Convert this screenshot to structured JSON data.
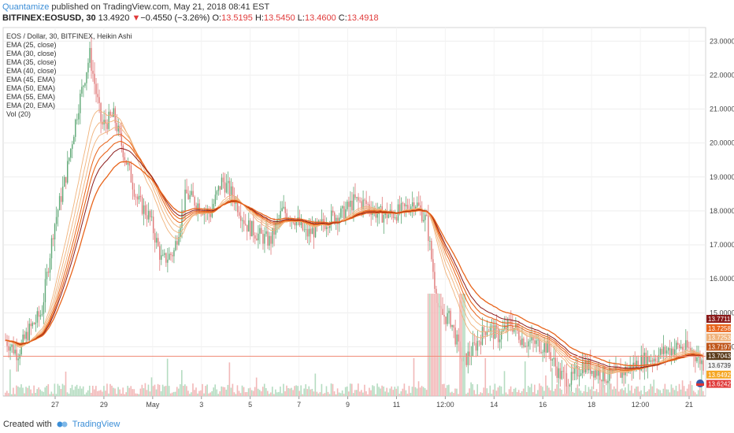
{
  "header": {
    "author": "Quantamize",
    "published_text": " published on TradingView.com, May 21, 2018 08:41 EST"
  },
  "ohlc": {
    "symbol": "BITFINEX:EOSUSD, 30",
    "last": "13.4920",
    "change": "−0.4550 (−3.26%)",
    "o_label": "O:",
    "o": "13.5195",
    "h_label": "H:",
    "h": "13.5450",
    "l_label": "L:",
    "l": "13.4600",
    "c_label": "C:",
    "c": "13.4918"
  },
  "legend": [
    "EOS / Dollar, 30, BITFINEX, Heikin Ashi",
    "EMA (25, close)",
    "EMA (30, close)",
    "EMA (35, close)",
    "EMA (40, close)",
    "EMA (45, EMA)",
    "EMA (50, EMA)",
    "EMA (55, EMA)",
    "EMA (20, EMA)",
    "Vol (20)"
  ],
  "footer": {
    "created_with": "Created with",
    "brand": "TradingView"
  },
  "colors": {
    "up": "#5fa876",
    "down": "#e07a7a",
    "vol_up": "#b5dcc1",
    "vol_down": "#f2b8b8",
    "ema_dark": "#8b1a1a",
    "ema_orange": "#e8641b",
    "ema_light": "#f0b27a",
    "hline": "#f08c78"
  },
  "chart_data": {
    "type": "candlestick",
    "y_axis_ticks": [
      "23.0000",
      "22.0000",
      "21.0000",
      "20.0000",
      "19.0000",
      "18.0000",
      "17.0000",
      "16.0000",
      "15.0000",
      "14.0000"
    ],
    "ylim": [
      12.55,
      23.4
    ],
    "x_axis_ticks": [
      "27",
      "29",
      "May",
      "3",
      "5",
      "7",
      "9",
      "11",
      "12:00",
      "14",
      "16",
      "18",
      "12:00",
      "21"
    ],
    "price_path": [
      [
        "26 00:00",
        14.2
      ],
      [
        "26 12:00",
        13.8
      ],
      [
        "27 00:00",
        14.5
      ],
      [
        "27 12:00",
        15.0
      ],
      [
        "28 00:00",
        17.5
      ],
      [
        "28 12:00",
        19.0
      ],
      [
        "29 00:00",
        21.0
      ],
      [
        "29 06:00",
        22.6
      ],
      [
        "29 12:00",
        20.5
      ],
      [
        "29 18:00",
        20.8
      ],
      [
        "30 00:00",
        19.5
      ],
      [
        "30 06:00",
        18.3
      ],
      [
        "30 12:00",
        17.8
      ],
      [
        "30 18:00",
        16.5
      ],
      [
        "May 1 00:00",
        16.8
      ],
      [
        "1 12:00",
        18.5
      ],
      [
        "2 00:00",
        18.2
      ],
      [
        "2 12:00",
        17.9
      ],
      [
        "3 00:00",
        18.9
      ],
      [
        "3 12:00",
        18.4
      ],
      [
        "4 00:00",
        17.6
      ],
      [
        "4 12:00",
        17.3
      ],
      [
        "5 00:00",
        17.1
      ],
      [
        "5 12:00",
        18.0
      ],
      [
        "6 00:00",
        17.8
      ],
      [
        "6 12:00",
        17.3
      ],
      [
        "7 00:00",
        17.5
      ],
      [
        "7 12:00",
        17.8
      ],
      [
        "8 00:00",
        17.9
      ],
      [
        "8 12:00",
        18.3
      ],
      [
        "9 00:00",
        18.2
      ],
      [
        "9 12:00",
        17.9
      ],
      [
        "10 00:00",
        17.9
      ],
      [
        "10 12:00",
        18.0
      ],
      [
        "11 00:00",
        18.3
      ],
      [
        "11 06:00",
        17.7
      ],
      [
        "11 12:00",
        15.0
      ],
      [
        "11 18:00",
        14.8
      ],
      [
        "12 00:00",
        13.5
      ],
      [
        "12 12:00",
        14.0
      ],
      [
        "13 00:00",
        14.6
      ],
      [
        "13 12:00",
        14.3
      ],
      [
        "14 00:00",
        14.7
      ],
      [
        "14 12:00",
        14.2
      ],
      [
        "15 00:00",
        14.1
      ],
      [
        "15 12:00",
        14.0
      ],
      [
        "16 00:00",
        13.2
      ],
      [
        "16 12:00",
        13.0
      ],
      [
        "17 00:00",
        13.5
      ],
      [
        "17 12:00",
        13.3
      ],
      [
        "18 00:00",
        13.1
      ],
      [
        "18 12:00",
        13.2
      ],
      [
        "19 00:00",
        13.4
      ],
      [
        "19 12:00",
        13.6
      ],
      [
        "20 00:00",
        13.7
      ],
      [
        "20 12:00",
        13.9
      ],
      [
        "21 00:00",
        14.0
      ],
      [
        "21 06:00",
        13.9
      ],
      [
        "21 12:00",
        13.5
      ]
    ],
    "price_labels": [
      {
        "value": "13.7711",
        "color": "#8b1a1a"
      },
      {
        "value": "13.7258",
        "color": "#e8641b"
      },
      {
        "value": "13.7253",
        "color": "#f0b27a"
      },
      {
        "value": "13.7197",
        "color": "#c0561a"
      },
      {
        "value": "13.7043",
        "color": "#5a3a1a"
      },
      {
        "value": "13.6739",
        "color": "#f4f4f4"
      },
      {
        "value": "13.6492",
        "color": "#f5a623"
      },
      {
        "value": "13.6242",
        "color": "#e03a3a"
      }
    ],
    "horizontal_line": 13.72
  }
}
